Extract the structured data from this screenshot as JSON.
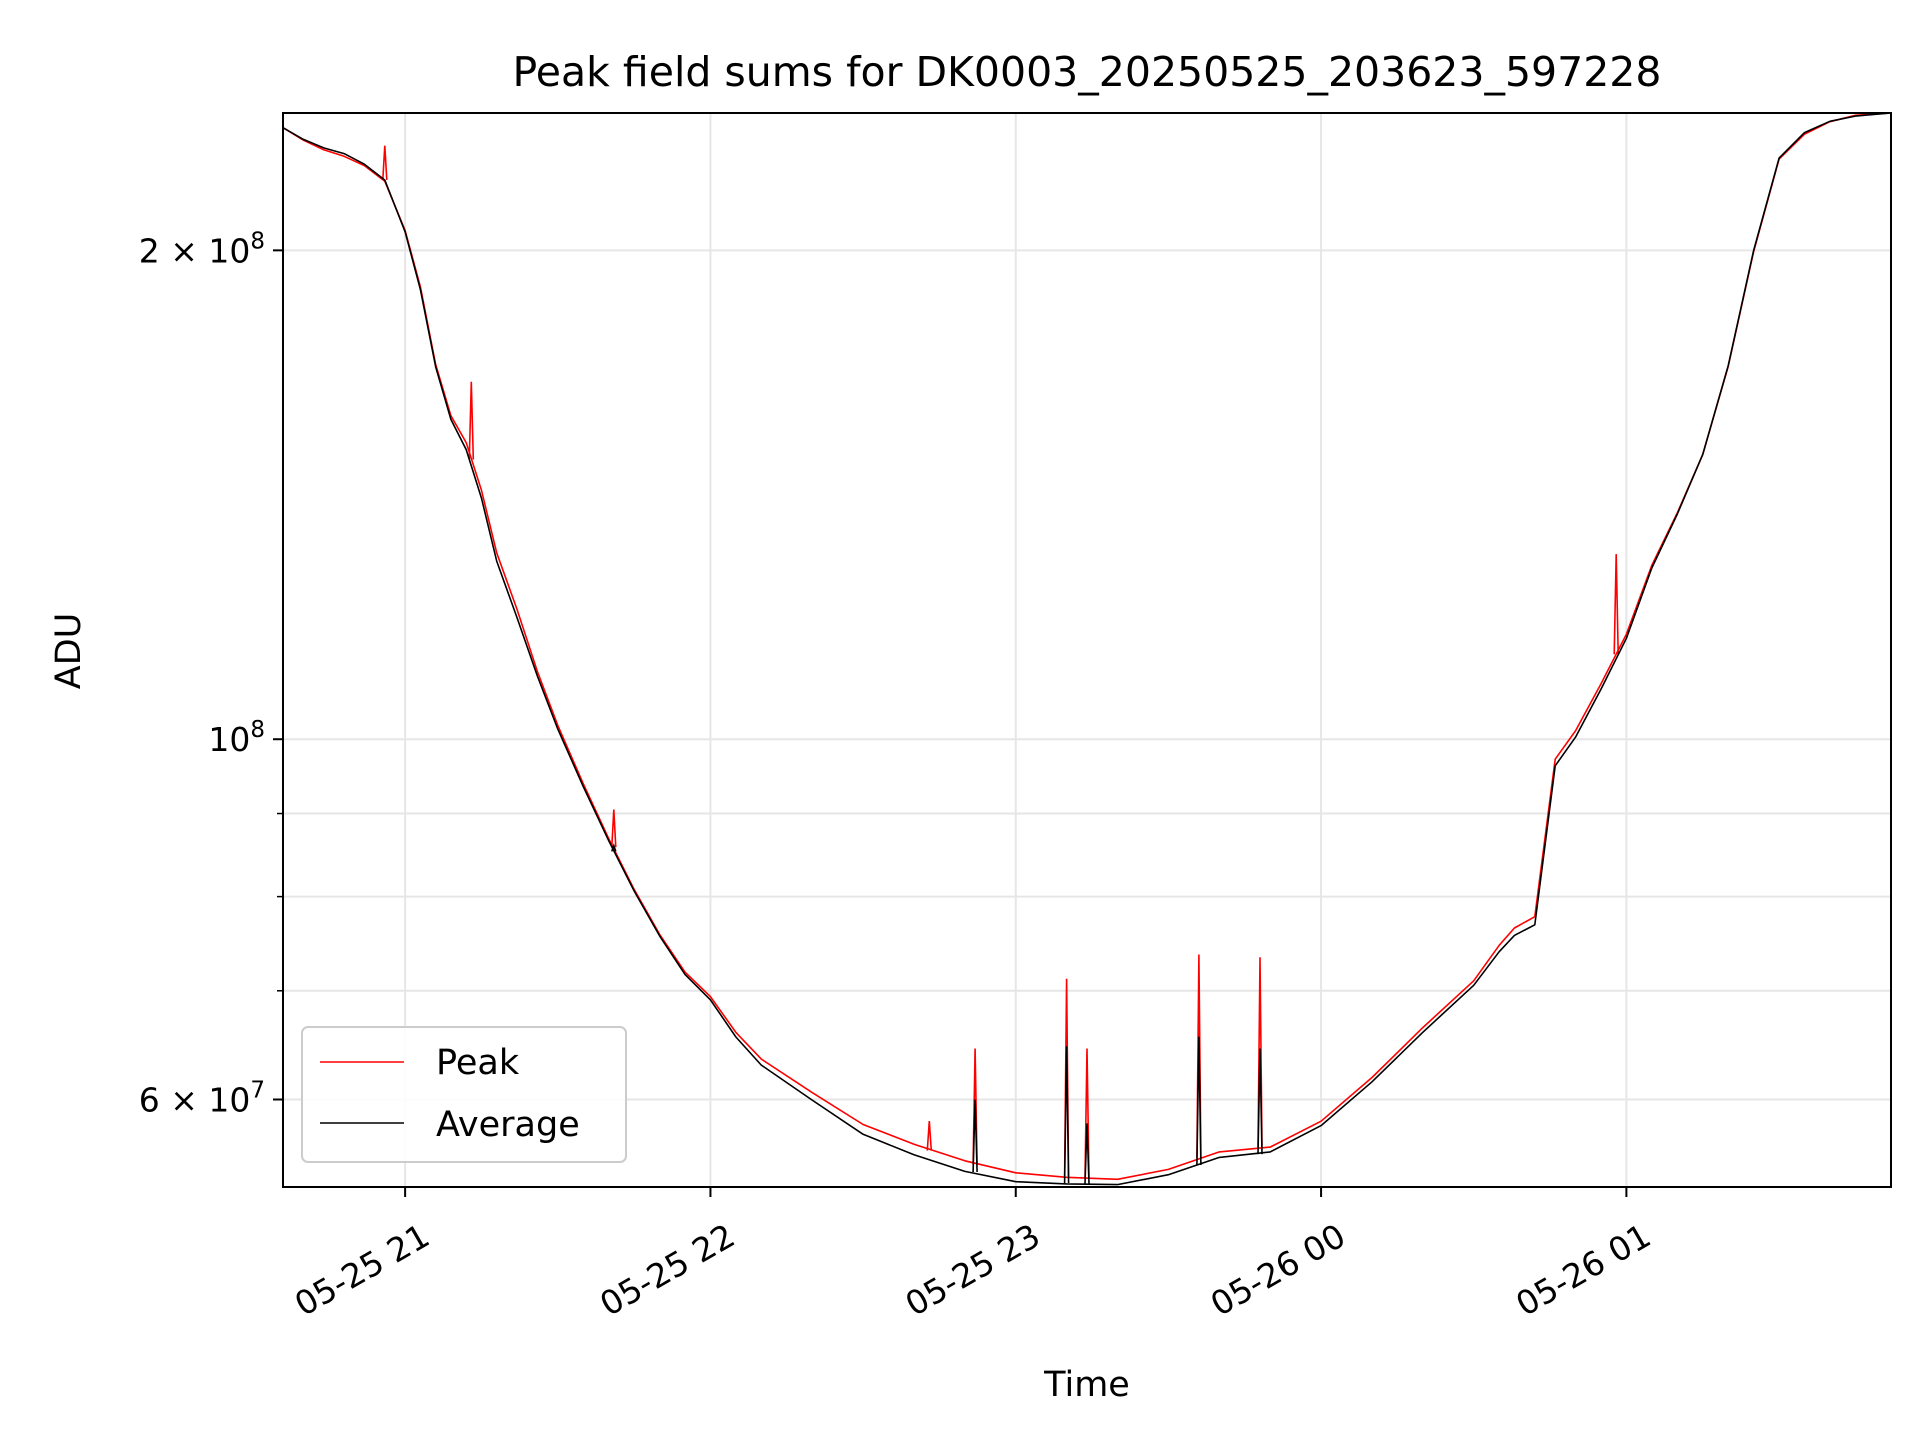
{
  "chart_data": {
    "type": "line",
    "title": "Peak field sums for DK0003_20250525_203623_597228",
    "xlabel": "Time",
    "ylabel": "ADU",
    "y_scale": "log",
    "ylim": [
      53000000,
      243000000
    ],
    "xlim": [
      "2025-05-25 20:36",
      "2025-05-26 01:52"
    ],
    "grid": true,
    "legend_position": "lower-left",
    "x_ticks": [
      {
        "t": "2025-05-25 21:00",
        "label": "05-25 21"
      },
      {
        "t": "2025-05-25 22:00",
        "label": "05-25 22"
      },
      {
        "t": "2025-05-25 23:00",
        "label": "05-25 23"
      },
      {
        "t": "2025-05-26 00:00",
        "label": "05-26 00"
      },
      {
        "t": "2025-05-26 01:00",
        "label": "05-26 01"
      }
    ],
    "y_major_ticks": [
      {
        "value": 200000000,
        "mantissa": "2",
        "exp": "8"
      },
      {
        "value": 100000000,
        "mantissa": "",
        "exp": "8"
      },
      {
        "value": 60000000,
        "mantissa": "6",
        "exp": "7"
      }
    ],
    "y_minor_ticks": [
      70000000,
      80000000,
      90000000
    ],
    "series": [
      {
        "name": "Peak",
        "color": "#ff0000",
        "x": [
          "2025-05-25 20:36",
          "2025-05-25 20:40",
          "2025-05-25 20:44",
          "2025-05-25 20:48",
          "2025-05-25 20:52",
          "2025-05-25 20:56",
          "2025-05-25 21:00",
          "2025-05-25 21:03",
          "2025-05-25 21:06",
          "2025-05-25 21:09",
          "2025-05-25 21:12",
          "2025-05-25 21:15",
          "2025-05-25 21:18",
          "2025-05-25 21:22",
          "2025-05-25 21:26",
          "2025-05-25 21:30",
          "2025-05-25 21:35",
          "2025-05-25 21:40",
          "2025-05-25 21:45",
          "2025-05-25 21:50",
          "2025-05-25 21:55",
          "2025-05-25 22:00",
          "2025-05-25 22:05",
          "2025-05-25 22:10",
          "2025-05-25 22:20",
          "2025-05-25 22:30",
          "2025-05-25 22:40",
          "2025-05-25 22:50",
          "2025-05-25 23:00",
          "2025-05-25 23:10",
          "2025-05-25 23:20",
          "2025-05-25 23:30",
          "2025-05-25 23:40",
          "2025-05-25 23:50",
          "2025-05-26 00:00",
          "2025-05-26 00:10",
          "2025-05-26 00:20",
          "2025-05-26 00:30",
          "2025-05-26 00:35",
          "2025-05-26 00:38",
          "2025-05-26 00:42",
          "2025-05-26 00:46",
          "2025-05-26 00:50",
          "2025-05-26 00:55",
          "2025-05-26 01:00",
          "2025-05-26 01:05",
          "2025-05-26 01:10",
          "2025-05-26 01:15",
          "2025-05-26 01:20",
          "2025-05-26 01:25",
          "2025-05-26 01:30",
          "2025-05-26 01:35",
          "2025-05-26 01:40",
          "2025-05-26 01:45",
          "2025-05-26 01:52"
        ],
        "values": [
          238000000,
          234000000,
          231000000,
          229000000,
          226000000,
          221000000,
          206000000,
          190000000,
          170000000,
          158000000,
          152000000,
          142000000,
          130000000,
          120000000,
          110000000,
          102000000,
          94000000,
          87000000,
          81000000,
          76000000,
          72000000,
          69500000,
          66000000,
          63500000,
          60500000,
          57800000,
          56200000,
          54900000,
          54000000,
          53700000,
          53600000,
          54400000,
          55800000,
          56200000,
          58300000,
          62000000,
          66500000,
          71000000,
          74600000,
          76400000,
          77600000,
          97000000,
          101000000,
          108000000,
          116000000,
          128000000,
          138000000,
          150000000,
          170000000,
          200000000,
          228000000,
          236000000,
          240000000,
          242000000,
          243000000
        ],
        "spikes": [
          {
            "t": "2025-05-25 20:56",
            "v": 232000000
          },
          {
            "t": "2025-05-25 21:13",
            "v": 166000000
          },
          {
            "t": "2025-05-25 21:41",
            "v": 90500000
          },
          {
            "t": "2025-05-25 22:43",
            "v": 58200000
          },
          {
            "t": "2025-05-25 22:52",
            "v": 64500000
          },
          {
            "t": "2025-05-25 23:10",
            "v": 71200000
          },
          {
            "t": "2025-05-25 23:14",
            "v": 64500000
          },
          {
            "t": "2025-05-25 23:36",
            "v": 73700000
          },
          {
            "t": "2025-05-25 23:48",
            "v": 73400000
          },
          {
            "t": "2025-05-26 00:58",
            "v": 130000000
          }
        ]
      },
      {
        "name": "Average",
        "color": "#000000",
        "x": [
          "2025-05-25 20:36",
          "2025-05-25 20:40",
          "2025-05-25 20:44",
          "2025-05-25 20:48",
          "2025-05-25 20:52",
          "2025-05-25 20:56",
          "2025-05-25 21:00",
          "2025-05-25 21:03",
          "2025-05-25 21:06",
          "2025-05-25 21:09",
          "2025-05-25 21:12",
          "2025-05-25 21:15",
          "2025-05-25 21:18",
          "2025-05-25 21:22",
          "2025-05-25 21:26",
          "2025-05-25 21:30",
          "2025-05-25 21:35",
          "2025-05-25 21:40",
          "2025-05-25 21:45",
          "2025-05-25 21:50",
          "2025-05-25 21:55",
          "2025-05-25 22:00",
          "2025-05-25 22:05",
          "2025-05-25 22:10",
          "2025-05-25 22:20",
          "2025-05-25 22:30",
          "2025-05-25 22:40",
          "2025-05-25 22:50",
          "2025-05-25 23:00",
          "2025-05-25 23:10",
          "2025-05-25 23:20",
          "2025-05-25 23:30",
          "2025-05-25 23:40",
          "2025-05-25 23:50",
          "2025-05-26 00:00",
          "2025-05-26 00:10",
          "2025-05-26 00:20",
          "2025-05-26 00:30",
          "2025-05-26 00:35",
          "2025-05-26 00:38",
          "2025-05-26 00:42",
          "2025-05-26 00:46",
          "2025-05-26 00:50",
          "2025-05-26 00:55",
          "2025-05-26 01:00",
          "2025-05-26 01:05",
          "2025-05-26 01:10",
          "2025-05-26 01:15",
          "2025-05-26 01:20",
          "2025-05-26 01:25",
          "2025-05-26 01:30",
          "2025-05-26 01:35",
          "2025-05-26 01:40",
          "2025-05-26 01:45",
          "2025-05-26 01:52"
        ],
        "values": [
          238000000,
          234000000,
          231000000,
          229000000,
          225500000,
          220500000,
          205000000,
          189000000,
          169500000,
          157500000,
          151000000,
          141000000,
          129000000,
          119000000,
          109500000,
          101500000,
          93500000,
          86500000,
          80500000,
          75500000,
          71500000,
          69000000,
          65500000,
          63000000,
          60000000,
          57200000,
          55600000,
          54300000,
          53500000,
          53300000,
          53200000,
          53900000,
          55200000,
          55600000,
          57700000,
          61400000,
          65900000,
          70500000,
          74000000,
          75800000,
          77000000,
          96500000,
          100500000,
          107500000,
          115500000,
          127500000,
          137500000,
          149500000,
          169500000,
          199500000,
          227500000,
          236000000,
          240000000,
          242000000,
          243000000
        ],
        "spikes": [
          {
            "t": "2025-05-25 21:41",
            "v": 86000000
          },
          {
            "t": "2025-05-25 22:52",
            "v": 60000000
          },
          {
            "t": "2025-05-25 23:10",
            "v": 64700000
          },
          {
            "t": "2025-05-25 23:14",
            "v": 58000000
          },
          {
            "t": "2025-05-25 23:36",
            "v": 65600000
          },
          {
            "t": "2025-05-25 23:48",
            "v": 64500000
          }
        ]
      }
    ]
  }
}
